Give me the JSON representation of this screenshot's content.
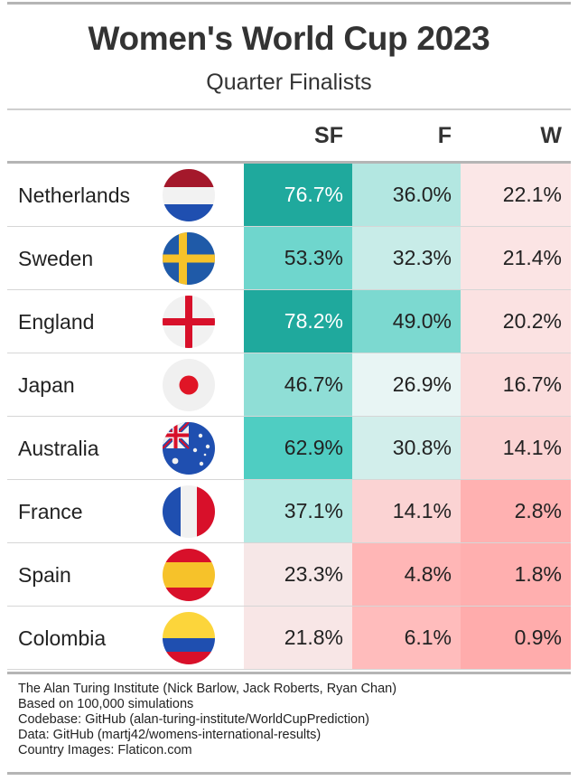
{
  "title": "Women's World Cup 2023",
  "subtitle": "Quarter Finalists",
  "chart_data": {
    "type": "table",
    "columns": [
      "SF",
      "F",
      "W"
    ],
    "rows": [
      {
        "country": "Netherlands",
        "flag": "netherlands-flag-icon",
        "values": [
          "76.7%",
          "36.0%",
          "22.1%"
        ],
        "colors": [
          "#1fa99d",
          "#b3e7e1",
          "#fbe7e7"
        ],
        "text": [
          "#ffffff",
          "#222222",
          "#222222"
        ]
      },
      {
        "country": "Sweden",
        "flag": "sweden-flag-icon",
        "values": [
          "53.3%",
          "32.3%",
          "21.4%"
        ],
        "colors": [
          "#6fd6cd",
          "#c8ece8",
          "#fbe4e4"
        ],
        "text": [
          "#222222",
          "#222222",
          "#222222"
        ]
      },
      {
        "country": "England",
        "flag": "england-flag-icon",
        "values": [
          "78.2%",
          "49.0%",
          "20.2%"
        ],
        "colors": [
          "#1fa99d",
          "#7cd9d0",
          "#fbe2e2"
        ],
        "text": [
          "#ffffff",
          "#222222",
          "#222222"
        ]
      },
      {
        "country": "Japan",
        "flag": "japan-flag-icon",
        "values": [
          "46.7%",
          "26.9%",
          "16.7%"
        ],
        "colors": [
          "#8fded6",
          "#e8f5f4",
          "#fbdcdc"
        ],
        "text": [
          "#222222",
          "#222222",
          "#222222"
        ]
      },
      {
        "country": "Australia",
        "flag": "australia-flag-icon",
        "values": [
          "62.9%",
          "30.8%",
          "14.1%"
        ],
        "colors": [
          "#4fcdc2",
          "#d2eeeb",
          "#fbd3d3"
        ],
        "text": [
          "#222222",
          "#222222",
          "#222222"
        ]
      },
      {
        "country": "France",
        "flag": "france-flag-icon",
        "values": [
          "37.1%",
          "14.1%",
          "2.8%"
        ],
        "colors": [
          "#b5e9e3",
          "#fbd3d3",
          "#ffb1b1"
        ],
        "text": [
          "#222222",
          "#222222",
          "#222222"
        ]
      },
      {
        "country": "Spain",
        "flag": "spain-flag-icon",
        "values": [
          "23.3%",
          "4.8%",
          "1.8%"
        ],
        "colors": [
          "#f6e7e7",
          "#ffb6b6",
          "#ffafaf"
        ],
        "text": [
          "#222222",
          "#222222",
          "#222222"
        ]
      },
      {
        "country": "Colombia",
        "flag": "colombia-flag-icon",
        "values": [
          "21.8%",
          "6.1%",
          "0.9%"
        ],
        "colors": [
          "#f8e6e6",
          "#ffbcbc",
          "#ffacac"
        ],
        "text": [
          "#222222",
          "#222222",
          "#222222"
        ]
      }
    ]
  },
  "footer": [
    "The Alan Turing Institute (Nick Barlow, Jack Roberts, Ryan Chan)",
    "Based on 100,000 simulations",
    "Codebase: GitHub (alan-turing-institute/WorldCupPrediction)",
    "Data: GitHub (martj42/womens-international-results)",
    "Country Images: Flaticon.com"
  ]
}
